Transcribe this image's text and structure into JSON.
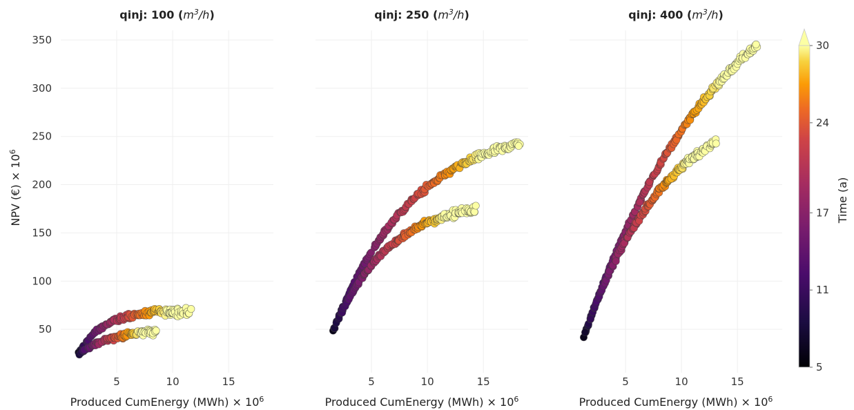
{
  "chart_data": {
    "type": "scatter",
    "ylabel": "NPV (€) × 10",
    "ylabel_exp": "6",
    "xlabel": "Produced CumEnergy (MWh) × 10",
    "xlabel_exp": "6",
    "xlim": [
      0,
      19
    ],
    "ylim": [
      5,
      360
    ],
    "x_ticks": [
      5,
      10,
      15
    ],
    "y_ticks": [
      50,
      100,
      150,
      200,
      250,
      300,
      350
    ],
    "grid": true,
    "colorbar": {
      "label": "Time (a)",
      "ticks": [
        5,
        11,
        17,
        24,
        30
      ],
      "range": [
        5,
        30
      ],
      "colormap": "inferno",
      "extend": "max"
    },
    "panels": [
      {
        "title_prefix": "qinj: 100 (",
        "title_unit_base": "m",
        "title_unit_sup": "3",
        "title_unit_rest": "/h",
        "title_suffix": ")",
        "branches": [
          {
            "x0": 1.5,
            "x1": 11.6,
            "y0": 23,
            "y1": 69,
            "k": 0.45,
            "n": 150
          },
          {
            "x0": 1.5,
            "x1": 8.6,
            "y0": 23,
            "y1": 48,
            "k": 0.35,
            "n": 110
          }
        ]
      },
      {
        "title_prefix": "qinj: 250 (",
        "title_unit_base": "m",
        "title_unit_sup": "3",
        "title_unit_rest": "/h",
        "title_suffix": ")",
        "branches": [
          {
            "x0": 1.5,
            "x1": 18.3,
            "y0": 46,
            "y1": 243,
            "k": 0.14,
            "n": 230
          },
          {
            "x0": 1.5,
            "x1": 14.3,
            "y0": 46,
            "y1": 175,
            "k": 0.2,
            "n": 200
          }
        ]
      },
      {
        "title_prefix": "qinj: 400 (",
        "title_unit_base": "m",
        "title_unit_sup": "3",
        "title_unit_rest": "/h",
        "title_suffix": ")",
        "branches": [
          {
            "x0": 1.3,
            "x1": 16.8,
            "y0": 43,
            "y1": 345,
            "k": 0.08,
            "n": 230
          },
          {
            "x0": 1.3,
            "x1": 13.0,
            "y0": 43,
            "y1": 245,
            "k": 0.13,
            "n": 200
          }
        ]
      }
    ]
  }
}
